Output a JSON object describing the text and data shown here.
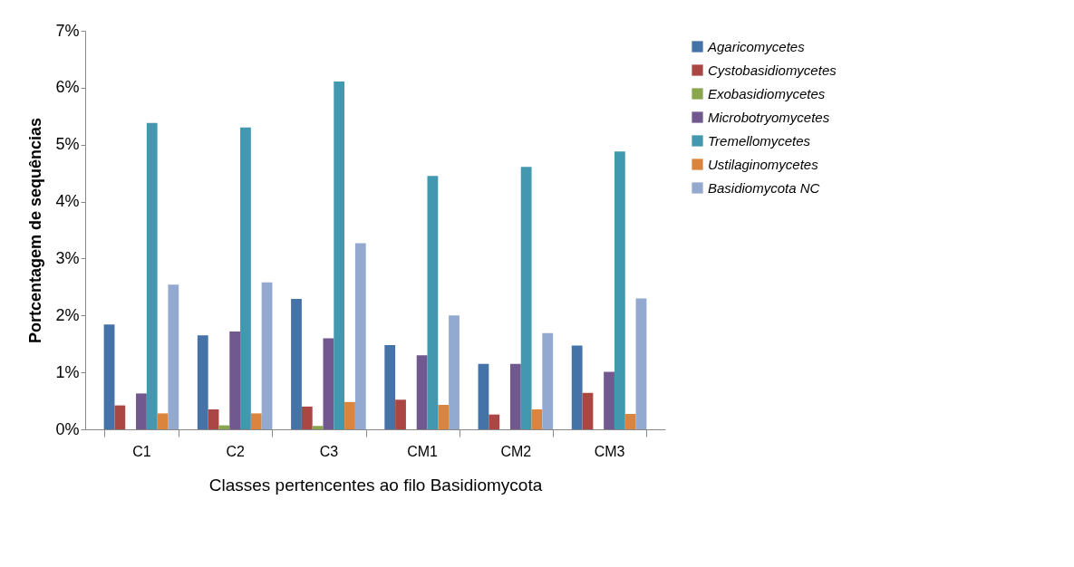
{
  "chart_data": {
    "type": "bar",
    "xlabel": "Classes pertencentes ao filo Basidiomycota",
    "ylabel": "Portcentagem de sequências",
    "categories": [
      "C1",
      "C2",
      "C3",
      "CM1",
      "CM2",
      "CM3"
    ],
    "series": [
      {
        "name": "Agaricomycetes",
        "color": "#4572a7",
        "values": [
          1.84,
          1.65,
          2.29,
          1.48,
          1.15,
          1.47
        ]
      },
      {
        "name": "Cystobasidiomycetes",
        "color": "#aa4643",
        "values": [
          0.42,
          0.35,
          0.4,
          0.52,
          0.26,
          0.64
        ]
      },
      {
        "name": "Exobasidiomycetes",
        "color": "#89a54e",
        "values": [
          null,
          0.07,
          0.06,
          null,
          null,
          null
        ]
      },
      {
        "name": "Microbotryomycetes",
        "color": "#71588f",
        "values": [
          0.63,
          1.72,
          1.6,
          1.3,
          1.15,
          1.01
        ]
      },
      {
        "name": "Tremellomycetes",
        "color": "#4198af",
        "values": [
          5.38,
          5.3,
          6.11,
          4.45,
          4.61,
          4.88
        ]
      },
      {
        "name": "Ustilaginomycetes",
        "color": "#db843d",
        "values": [
          0.28,
          0.28,
          0.48,
          0.43,
          0.35,
          0.27
        ]
      },
      {
        "name": "Basidiomycota NC",
        "color": "#93a9cf",
        "values": [
          2.54,
          2.58,
          3.27,
          2.0,
          1.69,
          2.3
        ]
      }
    ],
    "ylim": [
      0,
      7
    ],
    "yticks": [
      {
        "value": 0,
        "label": "0%"
      },
      {
        "value": 1,
        "label": "1%"
      },
      {
        "value": 2,
        "label": "2%"
      },
      {
        "value": 3,
        "label": "3%"
      },
      {
        "value": 4,
        "label": "4%"
      },
      {
        "value": 5,
        "label": "5%"
      },
      {
        "value": 6,
        "label": "6%"
      },
      {
        "value": 7,
        "label": "7%"
      }
    ],
    "grid": false,
    "legend": "right"
  }
}
